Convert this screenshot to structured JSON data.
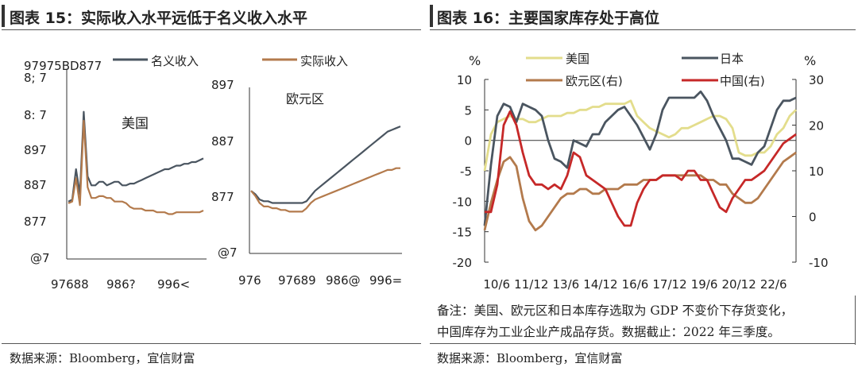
{
  "left": {
    "title": "图表 15：实际收入水平远低于名义收入水平",
    "source": "数据来源：Bloomberg，宜信财富",
    "legend": [
      {
        "name": "名义收入",
        "color": "#4a5560"
      },
      {
        "name": "实际收入",
        "color": "#b37a4c"
      }
    ],
    "us": {
      "label": "美国",
      "y_ticks": [
        "97975BD877",
        "8; 7",
        "8: 7",
        "897",
        "887",
        "877",
        "@7"
      ],
      "x_ticks": [
        "97688",
        "986?",
        "996<"
      ]
    },
    "euro": {
      "label": "欧元区",
      "y_ticks": [
        "897",
        "887",
        "877",
        "@7"
      ],
      "x_ticks": [
        "976",
        "97689",
        "986@",
        "996="
      ]
    }
  },
  "right": {
    "title": "图表 16：主要国家库存处于高位",
    "left_unit": "%",
    "right_unit": "%",
    "legend": [
      {
        "name": "美国",
        "color": "#e3dd8c"
      },
      {
        "name": "日本",
        "color": "#4a5560"
      },
      {
        "name": "欧元区(右)",
        "color": "#b37a4c"
      },
      {
        "name": "中国(右)",
        "color": "#c62828"
      }
    ],
    "left_ticks": [
      "10",
      "5",
      "0",
      "-5",
      "-10",
      "-15",
      "-20"
    ],
    "right_ticks": [
      "30",
      "20",
      "10",
      "0",
      "-10"
    ],
    "x_ticks": [
      "10/6",
      "11/12",
      "13/6",
      "14/12",
      "16/6",
      "17/12",
      "19/6",
      "20/12",
      "22/6"
    ],
    "note_line1": "备注：美国、欧元区和日本库存选取为 GDP 不变价下存货变化，",
    "note_line2": "中国库存为工业企业产成品存货。数据截止：2022 年三季度。",
    "source": "数据来源：Bloomberg，宜信财富"
  },
  "chart_data": [
    {
      "type": "line",
      "panel": "美国",
      "x": [
        0,
        1,
        2,
        3,
        4,
        5,
        6,
        7,
        8,
        9,
        10,
        11,
        12,
        13,
        14,
        15,
        16,
        17,
        18,
        19,
        20,
        21,
        22,
        23,
        24,
        25,
        26,
        27,
        28,
        29,
        30,
        31,
        32,
        33,
        34,
        35
      ],
      "series": [
        {
          "name": "名义收入",
          "values": [
            0.32,
            0.33,
            0.5,
            0.36,
            0.82,
            0.46,
            0.41,
            0.41,
            0.43,
            0.43,
            0.41,
            0.42,
            0.43,
            0.43,
            0.41,
            0.41,
            0.42,
            0.42,
            0.43,
            0.44,
            0.45,
            0.46,
            0.47,
            0.48,
            0.49,
            0.5,
            0.5,
            0.51,
            0.52,
            0.52,
            0.53,
            0.53,
            0.54,
            0.54,
            0.55,
            0.56
          ]
        },
        {
          "name": "实际收入",
          "values": [
            0.31,
            0.32,
            0.45,
            0.3,
            0.77,
            0.4,
            0.34,
            0.34,
            0.35,
            0.35,
            0.34,
            0.34,
            0.32,
            0.32,
            0.32,
            0.31,
            0.29,
            0.28,
            0.28,
            0.28,
            0.27,
            0.27,
            0.27,
            0.26,
            0.26,
            0.26,
            0.25,
            0.25,
            0.26,
            0.26,
            0.26,
            0.26,
            0.26,
            0.26,
            0.26,
            0.27
          ]
        }
      ]
    },
    {
      "type": "line",
      "panel": "欧元区",
      "x": [
        0,
        1,
        2,
        3,
        4,
        5,
        6,
        7,
        8,
        9,
        10,
        11,
        12,
        13,
        14,
        15,
        16,
        17,
        18,
        19,
        20,
        21,
        22,
        23,
        24,
        25,
        26,
        27,
        28,
        29,
        30,
        31,
        32,
        33,
        34,
        35
      ],
      "series": [
        {
          "name": "名义收入",
          "values": [
            0.36,
            0.34,
            0.31,
            0.3,
            0.3,
            0.29,
            0.29,
            0.29,
            0.29,
            0.29,
            0.29,
            0.29,
            0.29,
            0.3,
            0.33,
            0.36,
            0.38,
            0.4,
            0.42,
            0.44,
            0.46,
            0.48,
            0.5,
            0.52,
            0.54,
            0.56,
            0.58,
            0.6,
            0.62,
            0.64,
            0.66,
            0.68,
            0.7,
            0.71,
            0.72,
            0.73
          ]
        },
        {
          "name": "实际收入",
          "values": [
            0.36,
            0.33,
            0.29,
            0.27,
            0.27,
            0.26,
            0.26,
            0.25,
            0.25,
            0.24,
            0.24,
            0.24,
            0.24,
            0.26,
            0.29,
            0.31,
            0.32,
            0.33,
            0.34,
            0.35,
            0.36,
            0.37,
            0.38,
            0.39,
            0.4,
            0.41,
            0.42,
            0.43,
            0.44,
            0.45,
            0.46,
            0.47,
            0.48,
            0.48,
            0.49,
            0.49
          ]
        }
      ]
    },
    {
      "type": "line",
      "title": "",
      "x_ticks": [
        "10/6",
        "11/12",
        "13/6",
        "14/12",
        "16/6",
        "17/12",
        "19/6",
        "20/12",
        "22/6"
      ],
      "x_range": [
        2010.5,
        2022.75
      ],
      "ylim_left": [
        -20,
        10
      ],
      "ylim_right": [
        -10,
        30
      ],
      "series": [
        {
          "name": "美国",
          "axis": "left",
          "x": [
            2010.5,
            2010.75,
            2011.0,
            2011.25,
            2011.5,
            2011.75,
            2012.0,
            2012.25,
            2012.5,
            2012.75,
            2013.0,
            2013.25,
            2013.5,
            2013.75,
            2014.0,
            2014.25,
            2014.5,
            2014.75,
            2015.0,
            2015.25,
            2015.5,
            2015.75,
            2016.0,
            2016.25,
            2016.5,
            2016.75,
            2017.0,
            2017.25,
            2017.5,
            2017.75,
            2018.0,
            2018.25,
            2018.5,
            2018.75,
            2019.0,
            2019.25,
            2019.5,
            2019.75,
            2020.0,
            2020.25,
            2020.5,
            2020.75,
            2021.0,
            2021.25,
            2021.5,
            2021.75,
            2022.0,
            2022.25,
            2022.5,
            2022.75
          ],
          "values": [
            -5,
            1,
            3,
            3.5,
            4,
            3.5,
            3.5,
            3,
            3,
            3.5,
            4,
            4,
            4,
            4.5,
            4.5,
            5,
            5,
            5.5,
            5.5,
            6,
            6,
            6,
            6,
            6.5,
            4,
            3,
            2,
            1.5,
            1,
            0.5,
            1,
            2,
            2,
            2.5,
            3,
            3.5,
            4,
            4,
            3.5,
            2,
            -2,
            -2.5,
            -2.5,
            -2,
            -2,
            -1,
            1,
            2,
            4,
            5
          ]
        },
        {
          "name": "日本",
          "axis": "left",
          "x": [
            2010.5,
            2010.75,
            2011.0,
            2011.25,
            2011.5,
            2011.75,
            2012.0,
            2012.25,
            2012.5,
            2012.75,
            2013.0,
            2013.25,
            2013.5,
            2013.75,
            2014.0,
            2014.25,
            2014.5,
            2014.75,
            2015.0,
            2015.25,
            2015.5,
            2015.75,
            2016.0,
            2016.25,
            2016.5,
            2016.75,
            2017.0,
            2017.25,
            2017.5,
            2017.75,
            2018.0,
            2018.25,
            2018.5,
            2018.75,
            2019.0,
            2019.25,
            2019.5,
            2019.75,
            2020.0,
            2020.25,
            2020.5,
            2020.75,
            2021.0,
            2021.25,
            2021.5,
            2021.75,
            2022.0,
            2022.25,
            2022.5,
            2022.75
          ],
          "values": [
            -14,
            -4,
            4,
            6,
            5.5,
            3,
            6,
            5.5,
            5,
            4,
            0,
            -3,
            -3.5,
            -4.5,
            0,
            -0.5,
            -1,
            1,
            1,
            3,
            4,
            5,
            5.5,
            4,
            2.5,
            0.5,
            -1.5,
            1,
            5,
            7,
            7,
            7,
            7,
            7,
            8,
            6.5,
            4,
            2,
            0,
            -3,
            -3,
            -3.5,
            -4,
            -2,
            -1,
            2,
            5,
            6.5,
            6.5,
            7
          ]
        },
        {
          "name": "欧元区(右)",
          "axis": "right",
          "x": [
            2010.5,
            2010.75,
            2011.0,
            2011.25,
            2011.5,
            2011.75,
            2012.0,
            2012.25,
            2012.5,
            2012.75,
            2013.0,
            2013.25,
            2013.5,
            2013.75,
            2014.0,
            2014.25,
            2014.5,
            2014.75,
            2015.0,
            2015.25,
            2015.5,
            2015.75,
            2016.0,
            2016.25,
            2016.5,
            2016.75,
            2017.0,
            2017.25,
            2017.5,
            2017.75,
            2018.0,
            2018.25,
            2018.5,
            2018.75,
            2019.0,
            2019.25,
            2019.5,
            2019.75,
            2020.0,
            2020.25,
            2020.5,
            2020.75,
            2021.0,
            2021.25,
            2021.5,
            2021.75,
            2022.0,
            2022.25,
            2022.5,
            2022.75
          ],
          "values": [
            -3,
            3,
            8,
            12,
            13,
            11,
            4,
            -1,
            -3,
            -2,
            0,
            2,
            4,
            5,
            5,
            6,
            6,
            5,
            5,
            6,
            6,
            6,
            7,
            7,
            7,
            8,
            8,
            8,
            9,
            9,
            9,
            9,
            9,
            9,
            9,
            8,
            8,
            7,
            7,
            5,
            4,
            3,
            3,
            4,
            6,
            8,
            10,
            12,
            13,
            14
          ]
        },
        {
          "name": "中国(右)",
          "axis": "right",
          "x": [
            2010.5,
            2010.75,
            2011.0,
            2011.25,
            2011.5,
            2011.75,
            2012.0,
            2012.25,
            2012.5,
            2012.75,
            2013.0,
            2013.25,
            2013.5,
            2013.75,
            2014.0,
            2014.25,
            2014.5,
            2014.75,
            2015.0,
            2015.25,
            2015.5,
            2015.75,
            2016.0,
            2016.25,
            2016.5,
            2016.75,
            2017.0,
            2017.25,
            2017.5,
            2017.75,
            2018.0,
            2018.25,
            2018.5,
            2018.75,
            2019.0,
            2019.25,
            2019.5,
            2019.75,
            2020.0,
            2020.25,
            2020.5,
            2020.75,
            2021.0,
            2021.25,
            2021.5,
            2021.75,
            2022.0,
            2022.25,
            2022.5,
            2022.75
          ],
          "values": [
            1,
            1,
            7,
            20,
            23,
            20,
            14,
            9,
            7,
            7,
            6,
            7,
            6,
            9,
            14,
            13,
            9,
            8,
            7,
            6,
            3,
            0,
            -2,
            -2,
            3,
            6,
            8,
            8,
            9,
            9,
            9,
            8,
            10,
            10,
            8,
            8,
            5,
            2,
            1,
            4,
            6,
            8,
            8,
            9,
            10,
            12,
            14,
            16,
            17,
            18
          ]
        }
      ]
    }
  ]
}
